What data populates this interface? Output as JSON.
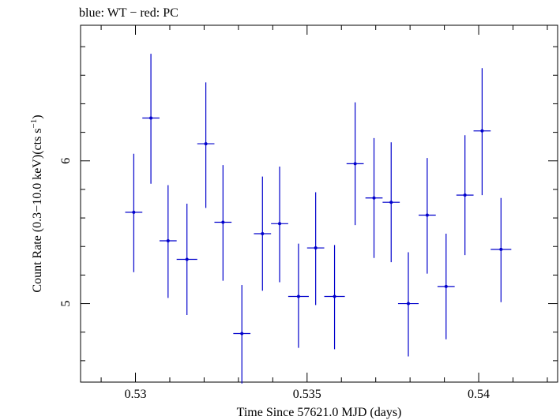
{
  "chart_data": {
    "type": "scatter",
    "title": "blue: WT − red: PC",
    "xlabel": "Time Since 57621.0 MJD (days)",
    "ylabel_main": "Count Rate (0.3−10.0 keV)(cts s",
    "ylabel_sup": "−1",
    "ylabel_end": ")",
    "xlim": [
      0.5284,
      0.5423
    ],
    "ylim": [
      4.45,
      6.95
    ],
    "x_ticks": [
      0.53,
      0.535,
      0.54
    ],
    "x_tick_labels": [
      "0.53",
      "0.535",
      "0.54"
    ],
    "y_ticks": [
      5,
      6
    ],
    "y_tick_labels": [
      "5",
      "6"
    ],
    "grid": false,
    "colors": {
      "series": "#0000cc",
      "axis": "#000000"
    },
    "series": [
      {
        "points": [
          {
            "x": 0.52995,
            "xerr": 0.00025,
            "y": 5.64,
            "ylo": 5.22,
            "yhi": 6.05
          },
          {
            "x": 0.53045,
            "xerr": 0.00025,
            "y": 6.3,
            "ylo": 5.84,
            "yhi": 6.75
          },
          {
            "x": 0.53095,
            "xerr": 0.00025,
            "y": 5.44,
            "ylo": 5.04,
            "yhi": 5.83
          },
          {
            "x": 0.5315,
            "xerr": 0.0003,
            "y": 5.31,
            "ylo": 4.92,
            "yhi": 5.7
          },
          {
            "x": 0.53205,
            "xerr": 0.00025,
            "y": 6.12,
            "ylo": 5.67,
            "yhi": 6.55
          },
          {
            "x": 0.53255,
            "xerr": 0.00025,
            "y": 5.57,
            "ylo": 5.16,
            "yhi": 5.97
          },
          {
            "x": 0.5331,
            "xerr": 0.00025,
            "y": 4.79,
            "ylo": 4.44,
            "yhi": 5.13
          },
          {
            "x": 0.5337,
            "xerr": 0.00025,
            "y": 5.49,
            "ylo": 5.09,
            "yhi": 5.89
          },
          {
            "x": 0.5342,
            "xerr": 0.00025,
            "y": 5.56,
            "ylo": 5.15,
            "yhi": 5.96
          },
          {
            "x": 0.53475,
            "xerr": 0.0003,
            "y": 5.05,
            "ylo": 4.69,
            "yhi": 5.42
          },
          {
            "x": 0.53525,
            "xerr": 0.00025,
            "y": 5.39,
            "ylo": 4.99,
            "yhi": 5.78
          },
          {
            "x": 0.5358,
            "xerr": 0.0003,
            "y": 5.05,
            "ylo": 4.68,
            "yhi": 5.41
          },
          {
            "x": 0.5364,
            "xerr": 0.00025,
            "y": 5.98,
            "ylo": 5.55,
            "yhi": 6.41
          },
          {
            "x": 0.53695,
            "xerr": 0.00025,
            "y": 5.74,
            "ylo": 5.32,
            "yhi": 6.16
          },
          {
            "x": 0.53745,
            "xerr": 0.00025,
            "y": 5.71,
            "ylo": 5.29,
            "yhi": 6.13
          },
          {
            "x": 0.53795,
            "xerr": 0.0003,
            "y": 5.0,
            "ylo": 4.63,
            "yhi": 5.36
          },
          {
            "x": 0.5385,
            "xerr": 0.00025,
            "y": 5.62,
            "ylo": 5.21,
            "yhi": 6.02
          },
          {
            "x": 0.53905,
            "xerr": 0.00025,
            "y": 5.12,
            "ylo": 4.75,
            "yhi": 5.49
          },
          {
            "x": 0.5396,
            "xerr": 0.00025,
            "y": 5.76,
            "ylo": 5.34,
            "yhi": 6.18
          },
          {
            "x": 0.5401,
            "xerr": 0.00025,
            "y": 6.21,
            "ylo": 5.76,
            "yhi": 6.65
          },
          {
            "x": 0.54065,
            "xerr": 0.0003,
            "y": 5.38,
            "ylo": 5.01,
            "yhi": 5.74
          }
        ]
      }
    ]
  }
}
